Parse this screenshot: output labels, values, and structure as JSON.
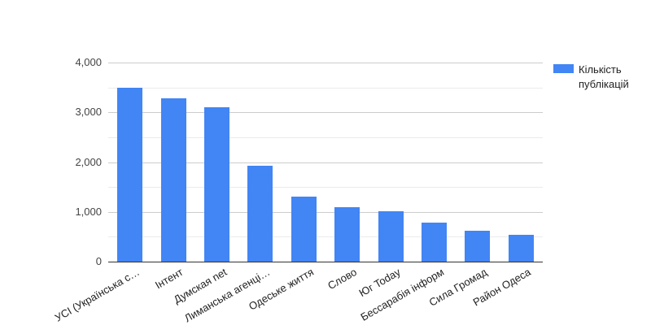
{
  "chart_data": {
    "type": "bar",
    "title": "",
    "xlabel": "",
    "ylabel": "",
    "categories": [
      "УСІ (Українська с…",
      "Інтент",
      "Думская net",
      "Лиманська агенці…",
      "Одеське життя",
      "Слово",
      "Юг Today",
      "Бессарабія інформ",
      "Сила Громад",
      "Район Одеса"
    ],
    "series": [
      {
        "name": "Кількість публікацій",
        "values": [
          3490,
          3280,
          3100,
          1930,
          1310,
          1090,
          1020,
          780,
          620,
          545
        ]
      }
    ],
    "ylim": [
      0,
      4000
    ],
    "yticks": [
      0,
      1000,
      2000,
      3000,
      4000
    ],
    "ytick_labels": [
      "0",
      "1,000",
      "2,000",
      "3,000",
      "4,000"
    ],
    "minor_grid_step": 500,
    "grid": true,
    "legend_position": "right",
    "colors": {
      "bar": "#4285f4",
      "major_gridline": "#cccccc",
      "minor_gridline": "#ebebeb",
      "baseline": "#333333",
      "y_axis_text": "#444444",
      "x_axis_text": "#222222",
      "legend_text": "#222222"
    }
  }
}
